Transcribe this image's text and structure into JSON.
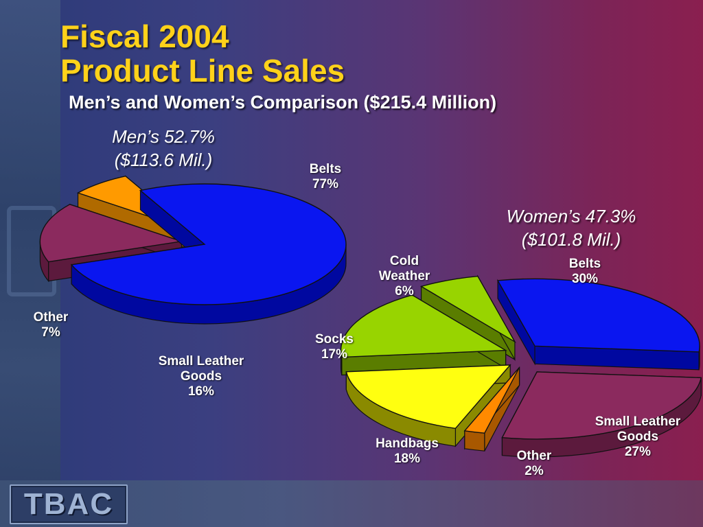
{
  "title_line1": "Fiscal 2004",
  "title_line2": "Product Line Sales",
  "subtitle": "Men’s and Women’s Comparison ($215.4 Million)",
  "logo_text": "TBAC",
  "chart_data": [
    {
      "type": "pie",
      "group_label_line1": "Men’s 52.7%",
      "group_label_line2": "($113.6 Mil.)",
      "slices": [
        {
          "name": "Belts",
          "value": 77,
          "value_label": "77%",
          "color": "#0a16f0",
          "side_color": "#0008a0"
        },
        {
          "name": "Small Leather Goods",
          "name_line1": "Small Leather",
          "name_line2": "Goods",
          "value": 16,
          "value_label": "16%",
          "color": "#8b2a5e",
          "side_color": "#5c1a3d"
        },
        {
          "name": "Other",
          "value": 7,
          "value_label": "7%",
          "color": "#ff9a00",
          "side_color": "#b06a00"
        }
      ]
    },
    {
      "type": "pie",
      "group_label_line1": "Women’s 47.3%",
      "group_label_line2": "($101.8 Mil.)",
      "slices": [
        {
          "name": "Belts",
          "value": 30,
          "value_label": "30%",
          "color": "#0a16f0",
          "side_color": "#0008a0"
        },
        {
          "name": "Small Leather Goods",
          "name_line1": "Small Leather",
          "name_line2": "Goods",
          "value": 27,
          "value_label": "27%",
          "color": "#8b2a5e",
          "side_color": "#5c1a3d"
        },
        {
          "name": "Other",
          "value": 2,
          "value_label": "2%",
          "color": "#ff8a00",
          "side_color": "#a85800"
        },
        {
          "name": "Handbags",
          "value": 18,
          "value_label": "18%",
          "color": "#ffff10",
          "side_color": "#8a8a00"
        },
        {
          "name": "Socks",
          "value": 17,
          "value_label": "17%",
          "color": "#98d400",
          "side_color": "#5a7d00"
        },
        {
          "name": "Cold Weather",
          "name_line1": "Cold",
          "name_line2": "Weather",
          "value": 6,
          "value_label": "6%",
          "color": "#98d400",
          "side_color": "#5a7d00"
        }
      ]
    }
  ]
}
